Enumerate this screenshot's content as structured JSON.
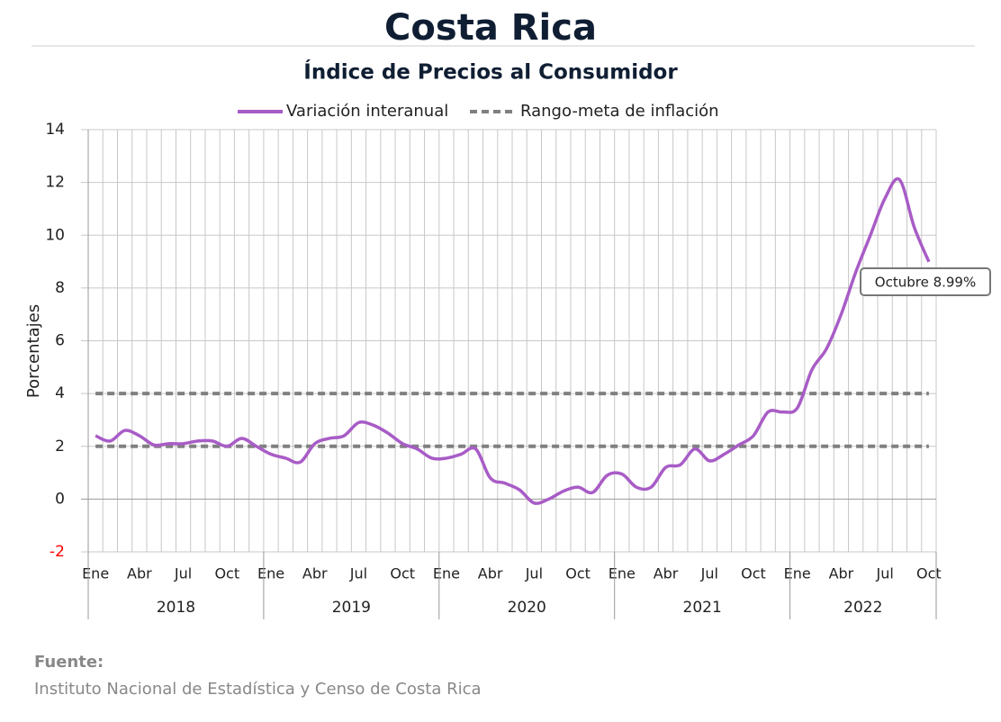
{
  "chart_data": {
    "type": "line",
    "title": "Costa Rica",
    "subtitle": "Índice de Precios al Consumidor",
    "y_label": "Porcentajes",
    "categories": [
      "Ene",
      null,
      null,
      "Abr",
      null,
      null,
      "Jul",
      null,
      null,
      "Oct",
      null,
      null,
      "Ene",
      null,
      null,
      "Abr",
      null,
      null,
      "Jul",
      null,
      null,
      "Oct",
      null,
      null,
      "Ene",
      null,
      null,
      "Abr",
      null,
      null,
      "Jul",
      null,
      null,
      "Oct",
      null,
      null,
      "Ene",
      null,
      null,
      "Abr",
      null,
      null,
      "Jul",
      null,
      null,
      "Oct",
      null,
      null,
      "Ene",
      null,
      null,
      "Abr",
      null,
      null,
      "Jul",
      null,
      null,
      "Oct"
    ],
    "years": [
      "2018",
      "2019",
      "2020",
      "2021",
      "2022"
    ],
    "series": [
      {
        "name": "Variación interanual",
        "color": "#a85cc6",
        "values": [
          2.4,
          2.2,
          2.6,
          2.4,
          2.05,
          2.1,
          2.1,
          2.2,
          2.2,
          2.0,
          2.3,
          2.0,
          1.7,
          1.55,
          1.4,
          2.1,
          2.3,
          2.4,
          2.9,
          2.8,
          2.5,
          2.1,
          1.9,
          1.55,
          1.55,
          1.7,
          1.9,
          0.8,
          0.6,
          0.35,
          -0.15,
          0.0,
          0.3,
          0.45,
          0.25,
          0.9,
          0.95,
          0.45,
          0.45,
          1.2,
          1.3,
          1.9,
          1.45,
          1.7,
          2.05,
          2.4,
          3.3,
          3.3,
          3.45,
          4.9,
          5.7,
          7.0,
          8.6,
          10.0,
          11.4,
          12.1,
          10.3,
          8.99
        ]
      }
    ],
    "reference_lines": {
      "name": "Rango-meta de inflación",
      "color": "#808080",
      "values": [
        2,
        4
      ]
    },
    "annotation": {
      "text": "Octubre 8.99%",
      "index": 57
    },
    "ylim": [
      -2,
      14
    ],
    "yticks": [
      -2,
      0,
      2,
      4,
      6,
      8,
      10,
      12,
      14
    ],
    "negative_tick_color": "#ff0000",
    "grid": true,
    "source_label": "Fuente:",
    "source": "Instituto Nacional de Estadística y Censo de Costa Rica"
  }
}
